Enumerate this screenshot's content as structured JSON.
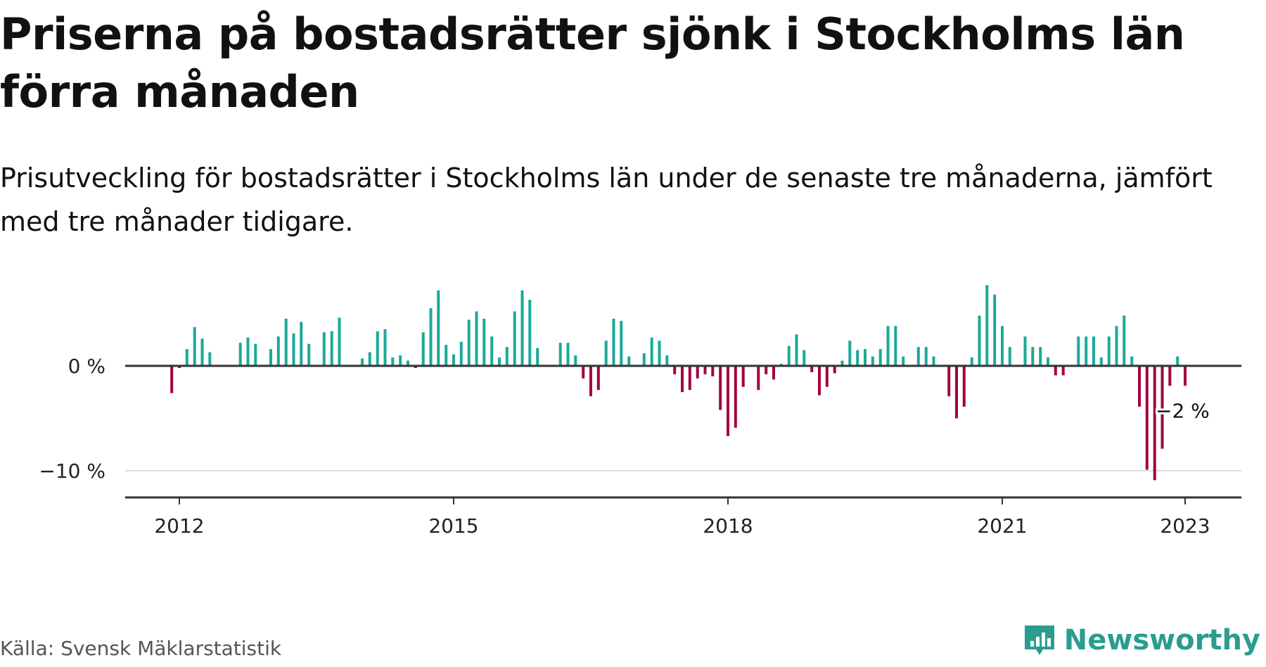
{
  "title": "Priserna på bostadsrätter sjönk i Stockholms län förra månaden",
  "subtitle": "Prisutveckling för bostadsrätter i Stockholms län under de senaste tre månaderna, jämfört med tre månader tidigare.",
  "source": "Källa: Svensk Mäklarstatistik",
  "brand": "Newsworthy",
  "colors": {
    "positive": "#1aa99a",
    "negative": "#a3003f",
    "axis": "#333333",
    "grid": "#dddddd",
    "brand": "#2a9d8f"
  },
  "chart_data": {
    "type": "bar",
    "x_unit": "year",
    "x_ticks": [
      2012,
      2015,
      2018,
      2021,
      2023
    ],
    "x_tick_labels": [
      "2012",
      "2015",
      "2018",
      "2021",
      "2023"
    ],
    "y_ticks": [
      0,
      -10
    ],
    "y_tick_labels": [
      "0 %",
      "−10 %"
    ],
    "ylim": [
      -12.5,
      8
    ],
    "grid": "horizontal",
    "annotation": {
      "x": 2023,
      "text": "−2 %"
    },
    "points": [
      {
        "x": 2011.917,
        "y": -2.6
      },
      {
        "x": 2012.0,
        "y": -0.2
      },
      {
        "x": 2012.083,
        "y": 1.6
      },
      {
        "x": 2012.167,
        "y": 3.7
      },
      {
        "x": 2012.25,
        "y": 2.6
      },
      {
        "x": 2012.333,
        "y": 1.3
      },
      {
        "x": 2012.667,
        "y": 2.2
      },
      {
        "x": 2012.75,
        "y": 2.7
      },
      {
        "x": 2012.833,
        "y": 2.1
      },
      {
        "x": 2013.0,
        "y": 1.6
      },
      {
        "x": 2013.083,
        "y": 2.8
      },
      {
        "x": 2013.167,
        "y": 4.5
      },
      {
        "x": 2013.25,
        "y": 3.1
      },
      {
        "x": 2013.333,
        "y": 4.2
      },
      {
        "x": 2013.417,
        "y": 2.1
      },
      {
        "x": 2013.583,
        "y": 3.2
      },
      {
        "x": 2013.667,
        "y": 3.3
      },
      {
        "x": 2013.75,
        "y": 4.6
      },
      {
        "x": 2014.0,
        "y": 0.7
      },
      {
        "x": 2014.083,
        "y": 1.3
      },
      {
        "x": 2014.167,
        "y": 3.3
      },
      {
        "x": 2014.25,
        "y": 3.5
      },
      {
        "x": 2014.333,
        "y": 0.8
      },
      {
        "x": 2014.417,
        "y": 1.0
      },
      {
        "x": 2014.5,
        "y": 0.5
      },
      {
        "x": 2014.583,
        "y": -0.2
      },
      {
        "x": 2014.667,
        "y": 3.2
      },
      {
        "x": 2014.75,
        "y": 5.5
      },
      {
        "x": 2014.833,
        "y": 7.2
      },
      {
        "x": 2014.917,
        "y": 2.0
      },
      {
        "x": 2015.0,
        "y": 1.1
      },
      {
        "x": 2015.083,
        "y": 2.3
      },
      {
        "x": 2015.167,
        "y": 4.4
      },
      {
        "x": 2015.25,
        "y": 5.2
      },
      {
        "x": 2015.333,
        "y": 4.5
      },
      {
        "x": 2015.417,
        "y": 2.8
      },
      {
        "x": 2015.5,
        "y": 0.8
      },
      {
        "x": 2015.583,
        "y": 1.8
      },
      {
        "x": 2015.667,
        "y": 5.2
      },
      {
        "x": 2015.75,
        "y": 7.2
      },
      {
        "x": 2015.833,
        "y": 6.3
      },
      {
        "x": 2015.917,
        "y": 1.7
      },
      {
        "x": 2016.167,
        "y": 2.2
      },
      {
        "x": 2016.25,
        "y": 2.2
      },
      {
        "x": 2016.333,
        "y": 1.0
      },
      {
        "x": 2016.417,
        "y": -1.2
      },
      {
        "x": 2016.5,
        "y": -2.9
      },
      {
        "x": 2016.583,
        "y": -2.3
      },
      {
        "x": 2016.667,
        "y": 2.4
      },
      {
        "x": 2016.75,
        "y": 4.5
      },
      {
        "x": 2016.833,
        "y": 4.3
      },
      {
        "x": 2016.917,
        "y": 0.9
      },
      {
        "x": 2017.083,
        "y": 1.2
      },
      {
        "x": 2017.167,
        "y": 2.7
      },
      {
        "x": 2017.25,
        "y": 2.4
      },
      {
        "x": 2017.333,
        "y": 1.0
      },
      {
        "x": 2017.417,
        "y": -0.8
      },
      {
        "x": 2017.5,
        "y": -2.5
      },
      {
        "x": 2017.583,
        "y": -2.3
      },
      {
        "x": 2017.667,
        "y": -1.2
      },
      {
        "x": 2017.75,
        "y": -0.8
      },
      {
        "x": 2017.833,
        "y": -1.0
      },
      {
        "x": 2017.917,
        "y": -4.2
      },
      {
        "x": 2018.0,
        "y": -6.7
      },
      {
        "x": 2018.083,
        "y": -5.9
      },
      {
        "x": 2018.167,
        "y": -2.0
      },
      {
        "x": 2018.333,
        "y": -2.3
      },
      {
        "x": 2018.417,
        "y": -0.8
      },
      {
        "x": 2018.5,
        "y": -1.3
      },
      {
        "x": 2018.583,
        "y": 0.2
      },
      {
        "x": 2018.667,
        "y": 1.9
      },
      {
        "x": 2018.75,
        "y": 3.0
      },
      {
        "x": 2018.833,
        "y": 1.5
      },
      {
        "x": 2018.917,
        "y": -0.6
      },
      {
        "x": 2019.0,
        "y": -2.8
      },
      {
        "x": 2019.083,
        "y": -2.0
      },
      {
        "x": 2019.167,
        "y": -0.7
      },
      {
        "x": 2019.25,
        "y": 0.5
      },
      {
        "x": 2019.333,
        "y": 2.4
      },
      {
        "x": 2019.417,
        "y": 1.5
      },
      {
        "x": 2019.5,
        "y": 1.6
      },
      {
        "x": 2019.583,
        "y": 0.9
      },
      {
        "x": 2019.667,
        "y": 1.6
      },
      {
        "x": 2019.75,
        "y": 3.8
      },
      {
        "x": 2019.833,
        "y": 3.8
      },
      {
        "x": 2019.917,
        "y": 0.9
      },
      {
        "x": 2020.083,
        "y": 1.8
      },
      {
        "x": 2020.167,
        "y": 1.8
      },
      {
        "x": 2020.25,
        "y": 0.9
      },
      {
        "x": 2020.417,
        "y": -2.9
      },
      {
        "x": 2020.5,
        "y": -5.0
      },
      {
        "x": 2020.583,
        "y": -3.9
      },
      {
        "x": 2020.667,
        "y": 0.8
      },
      {
        "x": 2020.75,
        "y": 4.8
      },
      {
        "x": 2020.833,
        "y": 7.7
      },
      {
        "x": 2020.917,
        "y": 6.8
      },
      {
        "x": 2021.0,
        "y": 3.8
      },
      {
        "x": 2021.083,
        "y": 1.8
      },
      {
        "x": 2021.25,
        "y": 2.8
      },
      {
        "x": 2021.333,
        "y": 1.8
      },
      {
        "x": 2021.417,
        "y": 1.8
      },
      {
        "x": 2021.5,
        "y": 0.8
      },
      {
        "x": 2021.583,
        "y": -0.9
      },
      {
        "x": 2021.667,
        "y": -0.9
      },
      {
        "x": 2021.833,
        "y": 2.8
      },
      {
        "x": 2021.917,
        "y": 2.8
      },
      {
        "x": 2022.0,
        "y": 2.8
      },
      {
        "x": 2022.083,
        "y": 0.8
      },
      {
        "x": 2022.167,
        "y": 2.8
      },
      {
        "x": 2022.25,
        "y": 3.8
      },
      {
        "x": 2022.333,
        "y": 4.8
      },
      {
        "x": 2022.417,
        "y": 0.9
      },
      {
        "x": 2022.5,
        "y": -3.9
      },
      {
        "x": 2022.583,
        "y": -9.9
      },
      {
        "x": 2022.667,
        "y": -10.9
      },
      {
        "x": 2022.75,
        "y": -7.9
      },
      {
        "x": 2022.833,
        "y": -1.9
      },
      {
        "x": 2022.917,
        "y": 0.9
      },
      {
        "x": 2023.0,
        "y": -1.9
      }
    ]
  }
}
